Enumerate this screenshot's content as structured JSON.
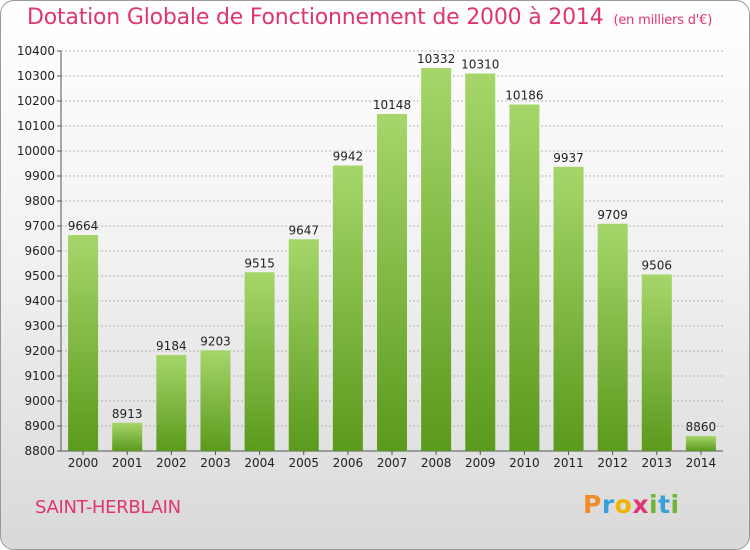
{
  "title": "Dotation Globale de Fonctionnement de 2000 à 2014",
  "unit": "(en milliers d'€)",
  "city": "SAINT-HERBLAIN",
  "logo": {
    "letters": [
      "P",
      "r",
      "o",
      "x",
      "i",
      "t",
      "i"
    ],
    "colors": [
      "#f28c28",
      "#3aa0d8",
      "#f0b400",
      "#e0356f",
      "#6fb43a",
      "#3aa0d8",
      "#6fb43a"
    ]
  },
  "colors": {
    "title": "#e0356f",
    "bar_top": "#a6d66a",
    "bar_bottom": "#5a9a1c",
    "grid": "#b4b4b4"
  },
  "chart_data": {
    "type": "bar",
    "categories": [
      "2000",
      "2001",
      "2002",
      "2003",
      "2004",
      "2005",
      "2006",
      "2007",
      "2008",
      "2009",
      "2010",
      "2011",
      "2012",
      "2013",
      "2014"
    ],
    "values": [
      9664,
      8913,
      9184,
      9203,
      9515,
      9647,
      9942,
      10148,
      10332,
      10310,
      10186,
      9937,
      9709,
      9506,
      8860
    ],
    "value_labels": [
      "9664",
      "8913",
      "9184",
      "9203",
      "9515",
      "9647",
      "9942",
      "10148",
      "10332",
      "10310",
      "10186",
      "9937",
      "9709",
      "9506",
      "8860"
    ],
    "ylim": [
      8800,
      10400
    ],
    "yticks": [
      8800,
      8900,
      9000,
      9100,
      9200,
      9300,
      9400,
      9500,
      9600,
      9700,
      9800,
      9900,
      10000,
      10100,
      10200,
      10300,
      10400
    ],
    "grid": true,
    "title": "Dotation Globale de Fonctionnement de 2000 à 2014",
    "xlabel": "",
    "ylabel": ""
  }
}
